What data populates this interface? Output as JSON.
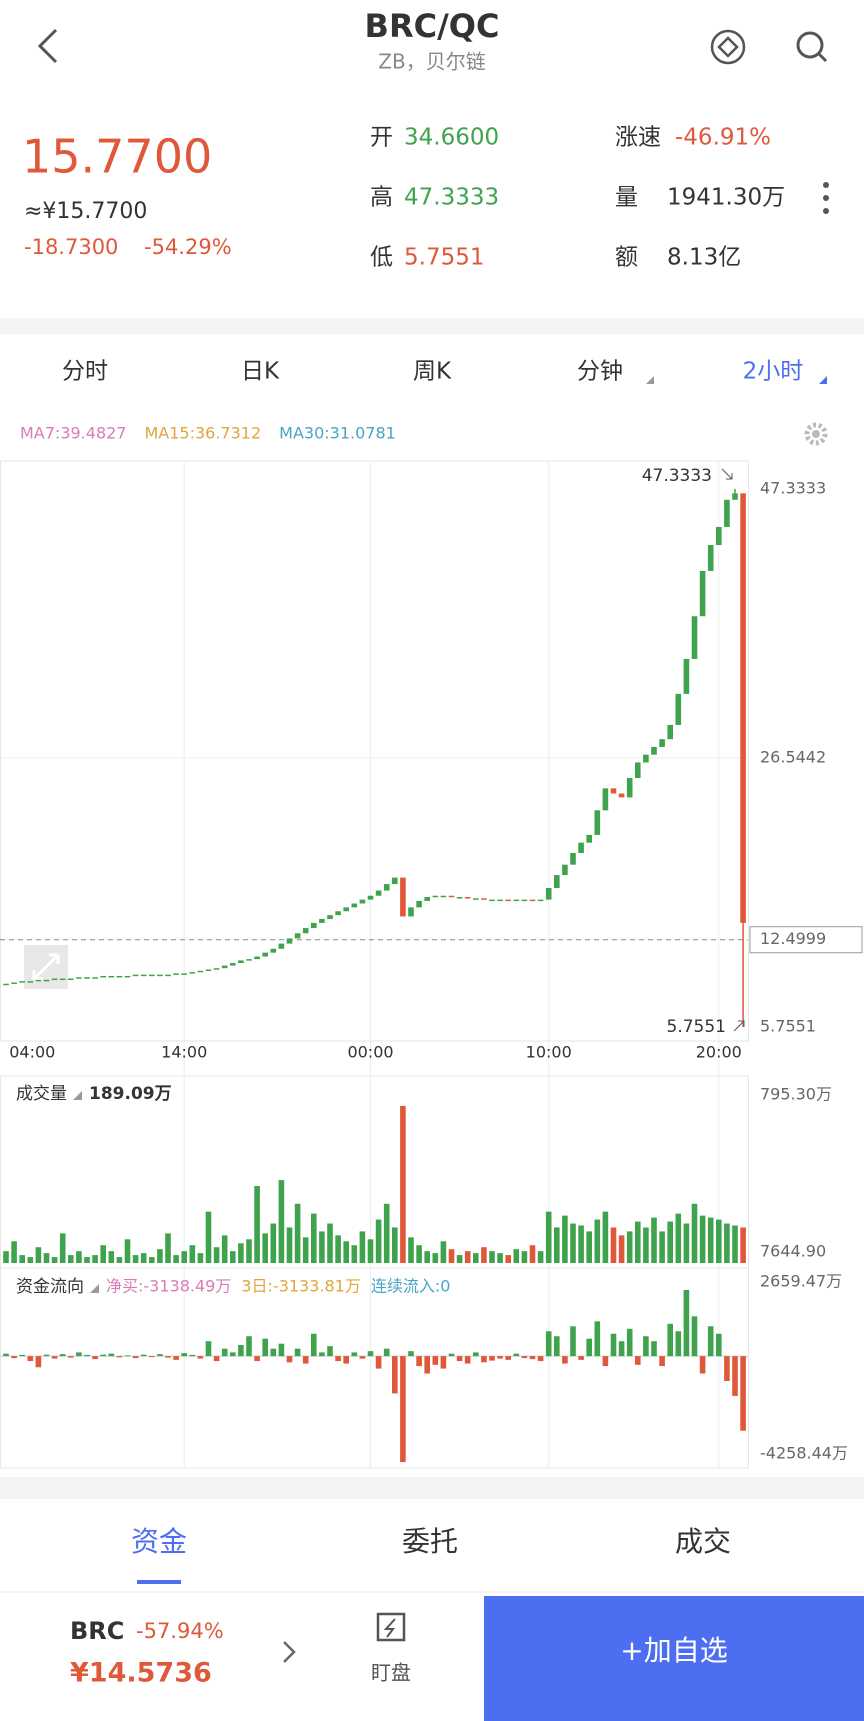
{
  "header": {
    "title": "BRC/QC",
    "subtitle": "ZB，贝尔链"
  },
  "quote": {
    "price": "15.7700",
    "cny": "≈¥15.7700",
    "change": "-18.7300",
    "change_pct": "-54.29%",
    "stats": [
      {
        "label": "开",
        "value": "34.6600",
        "color": "#3fa34d"
      },
      {
        "label": "高",
        "value": "47.3333",
        "color": "#3fa34d"
      },
      {
        "label": "低",
        "value": "5.7551",
        "color": "#e0583a"
      },
      {
        "label": "涨速",
        "value": "-46.91%",
        "color": "#e0583a"
      },
      {
        "label": "量",
        "value": "1941.30万",
        "color": "#333333"
      },
      {
        "label": "额",
        "value": "8.13亿",
        "color": "#333333"
      }
    ]
  },
  "period_tabs": {
    "items": [
      "分时",
      "日K",
      "周K",
      "分钟",
      "2小时"
    ],
    "active": 4
  },
  "ma_labels": [
    {
      "text": "MA7:39.4827",
      "color": "#d97bb6"
    },
    {
      "text": "MA15:36.7312",
      "color": "#e0a63a"
    },
    {
      "text": "MA30:31.0781",
      "color": "#4aa3c9"
    }
  ],
  "chart_data": [
    {
      "type": "candlestick",
      "up_color": "#3fa34d",
      "down_color": "#e0583a",
      "closes": [
        9.1,
        9.2,
        9.3,
        9.3,
        9.4,
        9.4,
        9.5,
        9.5,
        9.5,
        9.6,
        9.6,
        9.6,
        9.7,
        9.7,
        9.7,
        9.7,
        9.8,
        9.8,
        9.8,
        9.8,
        9.8,
        9.9,
        9.9,
        10.0,
        10.1,
        10.2,
        10.3,
        10.5,
        10.7,
        10.9,
        11.0,
        11.2,
        11.5,
        11.8,
        12.2,
        12.6,
        13.0,
        13.4,
        13.8,
        14.1,
        14.4,
        14.7,
        15.0,
        15.3,
        15.6,
        15.9,
        16.3,
        16.8,
        17.3,
        14.3,
        15.0,
        15.5,
        15.8,
        15.9,
        15.9,
        15.8,
        15.8,
        15.7,
        15.7,
        15.6,
        15.6,
        15.6,
        15.5,
        15.6,
        15.6,
        15.5,
        15.6,
        16.5,
        17.5,
        18.3,
        19.2,
        20.0,
        20.6,
        22.5,
        24.2,
        23.8,
        23.5,
        25.0,
        26.2,
        26.8,
        27.4,
        28.0,
        29.1,
        31.5,
        34.2,
        37.5,
        41.0,
        43.0,
        44.4,
        46.5,
        47.0,
        13.8
      ],
      "ylim": [
        5.7551,
        47.3333
      ],
      "yticks": [
        47.3333,
        26.5442,
        12.4999,
        5.7551
      ],
      "price_line": 12.4999,
      "high_marker": 47.3333,
      "low_marker": 5.7551,
      "xticks": [
        {
          "value": 3,
          "label": "04:00"
        },
        {
          "value": 22,
          "label": "14:00"
        },
        {
          "value": 45,
          "label": "00:00"
        },
        {
          "value": 67,
          "label": "10:00"
        },
        {
          "value": 88,
          "label": "20:00"
        }
      ]
    },
    {
      "type": "bar",
      "title": "成交量",
      "legend_value": "189.09万",
      "values": [
        60,
        110,
        40,
        30,
        80,
        50,
        30,
        150,
        40,
        60,
        30,
        40,
        90,
        60,
        30,
        120,
        40,
        50,
        30,
        70,
        150,
        40,
        60,
        90,
        50,
        260,
        80,
        140,
        60,
        100,
        120,
        390,
        150,
        200,
        420,
        180,
        300,
        130,
        250,
        160,
        200,
        140,
        110,
        90,
        160,
        120,
        220,
        300,
        180,
        795.3,
        130,
        90,
        60,
        50,
        110,
        70,
        40,
        60,
        50,
        80,
        60,
        50,
        40,
        70,
        60,
        90,
        60,
        260,
        180,
        240,
        200,
        190,
        160,
        220,
        260,
        180,
        140,
        160,
        210,
        180,
        230,
        160,
        210,
        250,
        200,
        300,
        240,
        230,
        220,
        200,
        190,
        180
      ],
      "ylim": [
        0,
        795.3
      ],
      "yticks": [
        {
          "value": 795.3,
          "label": "795.30万"
        },
        {
          "value": 0.76449,
          "label": "7644.90"
        }
      ]
    },
    {
      "type": "bar",
      "title": "资金流向",
      "up_color": "#3fa34d",
      "down_color": "#e0583a",
      "legend": [
        {
          "text": "净买:-3138.49万",
          "color": "#d97bb6"
        },
        {
          "text": "3日:-3133.81万",
          "color": "#e0a63a"
        },
        {
          "text": "连续流入:0",
          "color": "#4aa3c9"
        }
      ],
      "values": [
        100,
        -80,
        50,
        -200,
        -450,
        60,
        -100,
        80,
        -60,
        150,
        50,
        -120,
        60,
        100,
        -50,
        30,
        -80,
        60,
        -40,
        80,
        -60,
        -150,
        120,
        50,
        -100,
        600,
        -200,
        300,
        150,
        450,
        800,
        -200,
        700,
        300,
        500,
        -250,
        300,
        -300,
        900,
        150,
        400,
        -200,
        -300,
        150,
        -100,
        200,
        -500,
        300,
        -1500,
        -4258.44,
        200,
        -400,
        -700,
        -350,
        -500,
        100,
        -200,
        -300,
        150,
        -250,
        -180,
        -100,
        -150,
        100,
        -80,
        -120,
        -200,
        1000,
        800,
        -300,
        1200,
        -150,
        700,
        1400,
        -400,
        900,
        600,
        1100,
        -350,
        800,
        600,
        -400,
        1300,
        1000,
        2659.47,
        1600,
        -700,
        1200,
        900,
        -1000,
        -1600,
        -3000
      ],
      "ylim": [
        -4258.44,
        2659.47
      ],
      "yticks": [
        {
          "value": 2659.47,
          "label": "2659.47万"
        },
        {
          "value": -4258.44,
          "label": "-4258.44万"
        }
      ]
    }
  ],
  "bottom_tabs": {
    "items": [
      "资金",
      "委托",
      "成交"
    ],
    "active": 0
  },
  "footer": {
    "symbol": "BRC",
    "change_pct": "-57.94%",
    "price": "¥14.5736",
    "watch": "盯盘",
    "button": "+加自选"
  }
}
